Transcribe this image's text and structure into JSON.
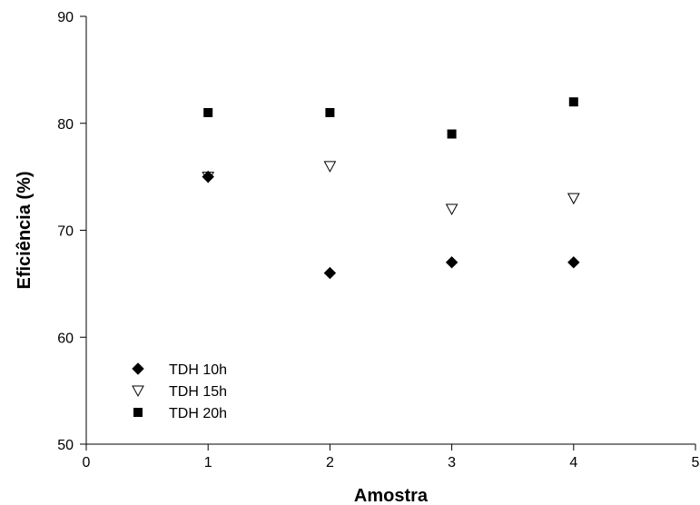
{
  "chart_data": {
    "type": "scatter",
    "title": "",
    "xlabel": "Amostra",
    "ylabel": "Eficiência (%)",
    "xlim": [
      0,
      5
    ],
    "ylim": [
      50,
      90
    ],
    "xticks": [
      "0",
      "1",
      "2",
      "3",
      "4",
      "5"
    ],
    "yticks": [
      "50",
      "60",
      "70",
      "80",
      "90"
    ],
    "grid": false,
    "legend_position": "bottom-left",
    "series": [
      {
        "name": "TDH 10h",
        "marker": "filled-diamond",
        "color": "#000000",
        "x": [
          1,
          2,
          3,
          4
        ],
        "y": [
          75,
          66,
          67,
          67
        ]
      },
      {
        "name": "TDH 15h",
        "marker": "open-triangle-down",
        "color": "#000000",
        "x": [
          1,
          2,
          3,
          4
        ],
        "y": [
          75,
          76,
          72,
          73
        ]
      },
      {
        "name": "TDH 20h",
        "marker": "filled-square",
        "color": "#000000",
        "x": [
          1,
          2,
          3,
          4
        ],
        "y": [
          81,
          81,
          79,
          82
        ]
      }
    ]
  }
}
